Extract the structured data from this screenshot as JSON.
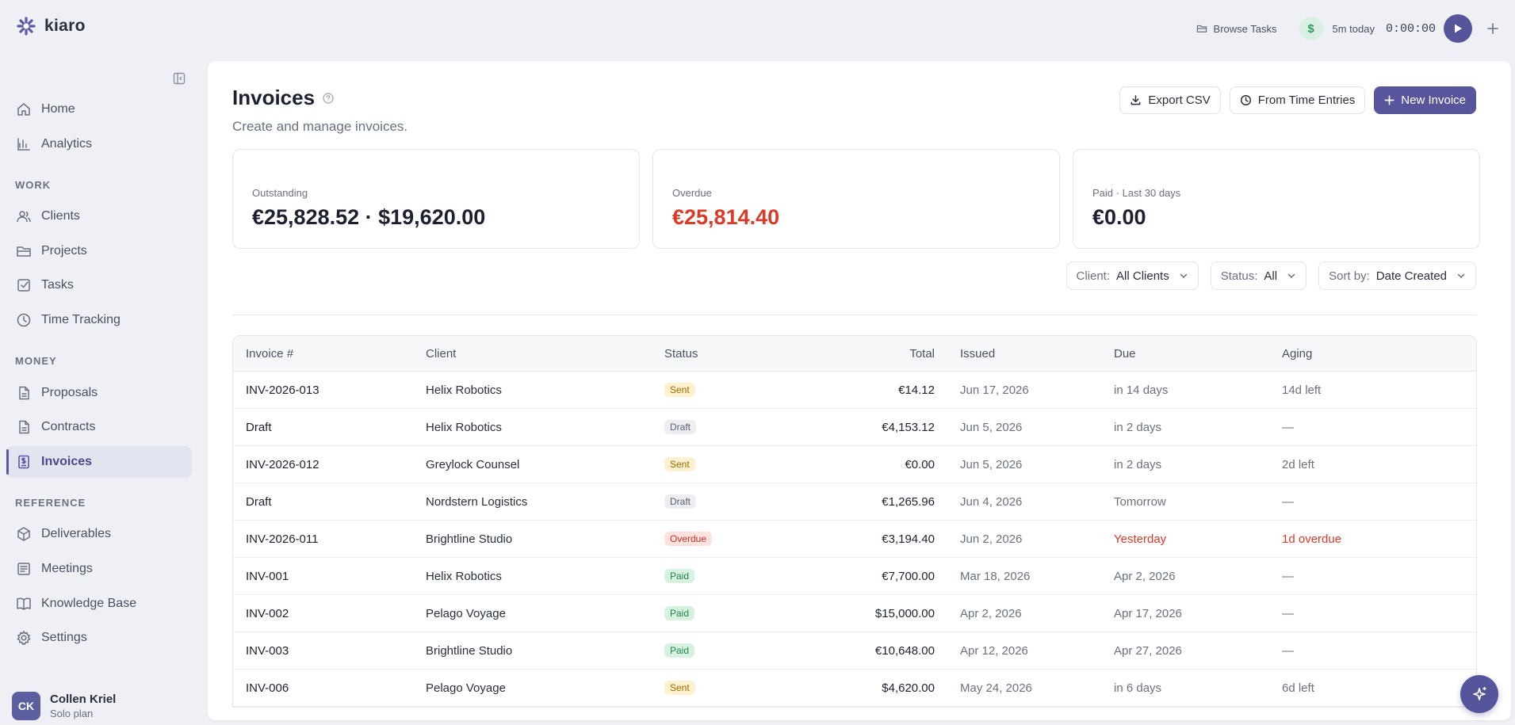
{
  "app": {
    "name": "kiaro"
  },
  "topbar": {
    "browse_tasks": "Browse Tasks",
    "today": "5m today",
    "timer": "0:00:00"
  },
  "sidebar": {
    "items_top": [
      {
        "label": "Home",
        "icon": "home-icon"
      },
      {
        "label": "Analytics",
        "icon": "chart-icon"
      }
    ],
    "section_work": "WORK",
    "items_work": [
      {
        "label": "Clients",
        "icon": "users-icon"
      },
      {
        "label": "Projects",
        "icon": "folder-icon"
      },
      {
        "label": "Tasks",
        "icon": "checkbox-icon"
      },
      {
        "label": "Time Tracking",
        "icon": "clock-icon"
      }
    ],
    "section_money": "MONEY",
    "items_money": [
      {
        "label": "Proposals",
        "icon": "document-icon"
      },
      {
        "label": "Contracts",
        "icon": "document-icon"
      },
      {
        "label": "Invoices",
        "icon": "invoice-icon",
        "active": true
      }
    ],
    "section_reference": "REFERENCE",
    "items_reference": [
      {
        "label": "Deliverables",
        "icon": "box-icon"
      },
      {
        "label": "Meetings",
        "icon": "notes-icon"
      },
      {
        "label": "Knowledge Base",
        "icon": "book-icon"
      },
      {
        "label": "Settings",
        "icon": "gear-icon"
      }
    ],
    "user": {
      "initials": "CK",
      "name": "Collen Kriel",
      "plan": "Solo plan"
    }
  },
  "page": {
    "title": "Invoices",
    "subtitle": "Create and manage invoices.",
    "actions": {
      "export": "Export CSV",
      "from_time": "From Time Entries",
      "new_invoice": "New Invoice"
    },
    "cards": [
      {
        "label": "Outstanding",
        "value": "€25,828.52 · $19,620.00"
      },
      {
        "label": "Overdue",
        "value": "€25,814.40"
      },
      {
        "label": "Paid · Last 30 days",
        "value": "€0.00"
      }
    ],
    "filters": {
      "client_label": "Client:",
      "client_value": "All Clients",
      "status_label": "Status:",
      "status_value": "All",
      "sort_label": "Sort by:",
      "sort_value": "Date Created"
    }
  },
  "table": {
    "headers": [
      "Invoice #",
      "Client",
      "Status",
      "Total",
      "Issued",
      "Due",
      "Aging"
    ],
    "rows": [
      {
        "invoice": "INV-2026-013",
        "client": "Helix Robotics",
        "status": "Sent",
        "total": "€14.12",
        "issued": "Jun 17, 2026",
        "due": "in 14 days",
        "aging": "14d left"
      },
      {
        "invoice": "Draft",
        "client": "Helix Robotics",
        "status": "Draft",
        "total": "€4,153.12",
        "issued": "Jun 5, 2026",
        "due": "in 2 days",
        "aging": "—"
      },
      {
        "invoice": "INV-2026-012",
        "client": "Greylock Counsel",
        "status": "Sent",
        "total": "€0.00",
        "issued": "Jun 5, 2026",
        "due": "in 2 days",
        "aging": "2d left"
      },
      {
        "invoice": "Draft",
        "client": "Nordstern Logistics",
        "status": "Draft",
        "total": "€1,265.96",
        "issued": "Jun 4, 2026",
        "due": "Tomorrow",
        "aging": "—"
      },
      {
        "invoice": "INV-2026-011",
        "client": "Brightline Studio",
        "status": "Overdue",
        "total": "€3,194.40",
        "issued": "Jun 2, 2026",
        "due": "Yesterday",
        "aging": "1d overdue"
      },
      {
        "invoice": "INV-001",
        "client": "Helix Robotics",
        "status": "Paid",
        "total": "€7,700.00",
        "issued": "Mar 18, 2026",
        "due": "Apr 2, 2026",
        "aging": "—"
      },
      {
        "invoice": "INV-002",
        "client": "Pelago Voyage",
        "status": "Paid",
        "total": "$15,000.00",
        "issued": "Apr 2, 2026",
        "due": "Apr 17, 2026",
        "aging": "—"
      },
      {
        "invoice": "INV-003",
        "client": "Brightline Studio",
        "status": "Paid",
        "total": "€10,648.00",
        "issued": "Apr 12, 2026",
        "due": "Apr 27, 2026",
        "aging": "—"
      },
      {
        "invoice": "INV-006",
        "client": "Pelago Voyage",
        "status": "Sent",
        "total": "$4,620.00",
        "issued": "May 24, 2026",
        "due": "in 6 days",
        "aging": "6d left"
      }
    ]
  },
  "colors": {
    "accent": "#58559d",
    "danger": "#dc3a26",
    "background": "#eef0f6"
  }
}
